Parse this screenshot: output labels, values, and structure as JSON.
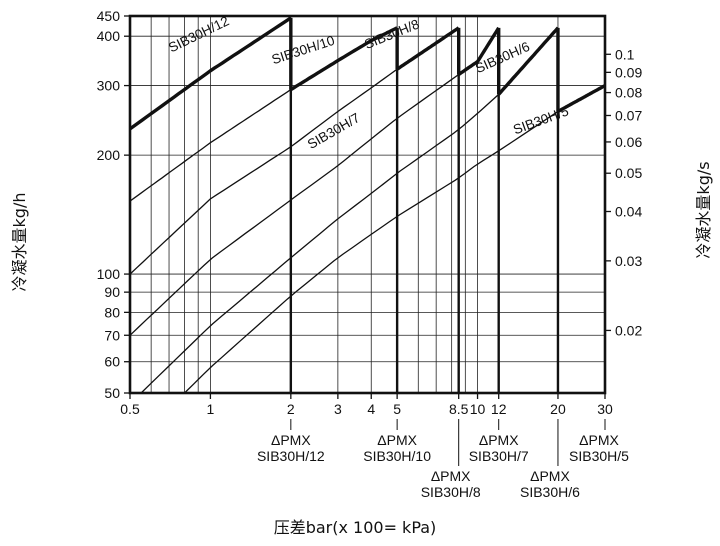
{
  "chart_data": {
    "type": "line",
    "xlabel": "压差bar(x 100= kPa)",
    "ylabel": "冷凝水量kg/h",
    "ylabel_right": "冷凝水量kg/s",
    "xscale": "log",
    "yscale": "log",
    "xlim": [
      0.5,
      30
    ],
    "ylim": [
      50,
      450
    ],
    "grid": true,
    "x_ticks": [
      0.5,
      1,
      2,
      3,
      4,
      5,
      8.5,
      10,
      12,
      20,
      30
    ],
    "x_tick_labels": [
      "0.5",
      "1",
      "2",
      "3",
      "4",
      "5",
      "8.5",
      "10",
      "12",
      "20",
      "30"
    ],
    "y_ticks": [
      50,
      60,
      70,
      80,
      90,
      100,
      200,
      300,
      400,
      450
    ],
    "y_tick_labels": [
      "50",
      "60",
      "70",
      "80",
      "90",
      "100",
      "200",
      "300",
      "400",
      "450"
    ],
    "y2_ticks": [
      0.02,
      0.03,
      0.04,
      0.05,
      0.06,
      0.07,
      0.08,
      0.09,
      0.1
    ],
    "y2_tick_labels": [
      "0.02",
      "0.03",
      "0.04",
      "0.05",
      "0.06",
      "0.07",
      "0.08",
      "0.09",
      "0.1"
    ],
    "series": [
      {
        "name": "SIB30H/12",
        "x": [
          0.5,
          1,
          2
        ],
        "y": [
          233,
          327,
          445
        ],
        "max_x": 2
      },
      {
        "name": "SIB30H/10",
        "x": [
          0.5,
          1,
          2,
          3,
          4,
          5
        ],
        "y": [
          153,
          215,
          293,
          347,
          390,
          420
        ],
        "max_x": 5
      },
      {
        "name": "SIB30H/8",
        "x": [
          0.5,
          1,
          2,
          3,
          4,
          5,
          8.5
        ],
        "y": [
          100,
          155,
          210,
          258,
          296,
          330,
          420
        ],
        "max_x": 8.5
      },
      {
        "name": "SIB30H/7",
        "x": [
          0.5,
          1,
          2,
          3,
          4,
          5,
          8.5,
          10,
          12
        ],
        "y": [
          70,
          109,
          154,
          188,
          220,
          248,
          320,
          345,
          420
        ],
        "max_x": 12
      },
      {
        "name": "SIB30H/6",
        "x": [
          0.55,
          1,
          2,
          3,
          4,
          5,
          8.5,
          10,
          12,
          20
        ],
        "y": [
          50,
          74,
          110,
          138,
          160,
          180,
          232,
          255,
          285,
          420
        ],
        "max_x": 20
      },
      {
        "name": "SIB30H/5",
        "x": [
          0.8,
          1,
          2,
          3,
          4,
          5,
          8.5,
          10,
          12,
          20,
          30
        ],
        "y": [
          50,
          58,
          88,
          110,
          126,
          140,
          175,
          190,
          205,
          258,
          300
        ],
        "max_x": 30
      }
    ],
    "pmx_labels": [
      {
        "x": 2,
        "line1": "ΔPMX",
        "line2": "SIB30H/12"
      },
      {
        "x": 5,
        "line1": "ΔPMX",
        "line2": "SIB30H/10"
      },
      {
        "x": 8.5,
        "line1": "ΔPMX",
        "line2": "SIB30H/8"
      },
      {
        "x": 12,
        "line1": "ΔPMX",
        "line2": "SIB30H/7"
      },
      {
        "x": 20,
        "line1": "ΔPMX",
        "line2": "SIB30H/6"
      },
      {
        "x": 30,
        "line1": "ΔPMX",
        "line2": "SIB30H/5"
      }
    ],
    "curve_labels": [
      "SIB30H/12",
      "SIB30H/10",
      "SIB30H/8",
      "SIB30H/7",
      "SIB30H/6",
      "SIB30H/5"
    ]
  }
}
